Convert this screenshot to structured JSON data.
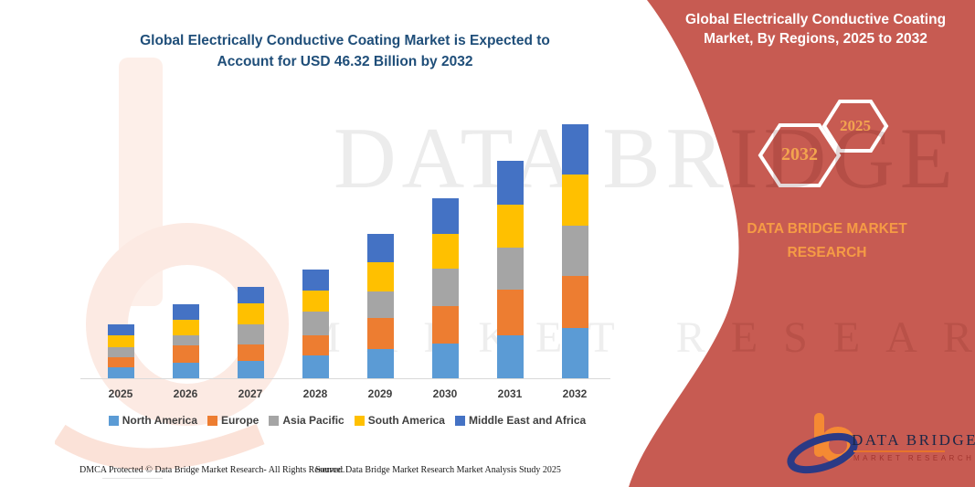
{
  "header": {
    "title_line1": "Global Electrically Conductive Coating Market is Expected to",
    "title_line2": "Account for USD 46.32 Billion by 2032"
  },
  "right_panel": {
    "title_line1": "Global Electrically Conductive Coating",
    "title_line2": "Market, By Regions, 2025 to 2032",
    "hex_large_label": "2032",
    "hex_small_label": "2025",
    "brand_line1": "DATA BRIDGE MARKET",
    "brand_line2": "RESEARCH"
  },
  "watermark": {
    "main": "DATA BRIDGE",
    "sub": "MARKET RESEARCH"
  },
  "logo": {
    "name_text": "DATA BRIDGE",
    "sub_text": "MARKET RESEARCH"
  },
  "footer": {
    "left": "DMCA Protected © Data Bridge Market Research-  All Rights Reserved.",
    "right": "Source: Data Bridge Market Research  Market Analysis Study 2025"
  },
  "colors": {
    "panel_red": "#C75B52",
    "title_blue": "#1F4E79",
    "accent_orange": "#F59B45",
    "hex_label_orange": "#F2A44F",
    "logo_orange": "#F58A33",
    "logo_blue": "#2B3A85"
  },
  "chart_data": {
    "type": "bar",
    "stacked": true,
    "title": "Global Electrically Conductive Coating Market is Expected to Account for USD 46.32 Billion by 2032",
    "unit": "USD Billion",
    "categories": [
      "2025",
      "2026",
      "2027",
      "2028",
      "2029",
      "2030",
      "2031",
      "2032"
    ],
    "series": [
      {
        "name": "North America",
        "color": "#5B9BD5",
        "values": [
          2.0,
          2.9,
          3.2,
          4.1,
          5.3,
          6.4,
          7.9,
          9.2
        ]
      },
      {
        "name": "Europe",
        "color": "#ED7D31",
        "values": [
          1.9,
          3.1,
          2.9,
          3.8,
          5.7,
          6.7,
          8.2,
          9.4
        ]
      },
      {
        "name": "Asia Pacific",
        "color": "#A5A5A5",
        "values": [
          1.7,
          1.9,
          3.7,
          4.2,
          4.8,
          6.9,
          7.8,
          9.2
        ]
      },
      {
        "name": "South America",
        "color": "#FFC000",
        "values": [
          2.2,
          2.8,
          3.9,
          3.9,
          5.4,
          6.4,
          7.8,
          9.3
        ]
      },
      {
        "name": "Middle East and Africa",
        "color": "#4472C4",
        "values": [
          2.1,
          2.8,
          2.9,
          3.9,
          5.2,
          6.4,
          7.9,
          9.2
        ]
      }
    ],
    "totals": [
      9.9,
      13.5,
      16.6,
      19.9,
      26.4,
      32.8,
      39.6,
      46.3
    ],
    "xlabel": "",
    "ylabel": "",
    "y_axis_visible": false,
    "gridlines": false,
    "legend_position": "bottom"
  }
}
